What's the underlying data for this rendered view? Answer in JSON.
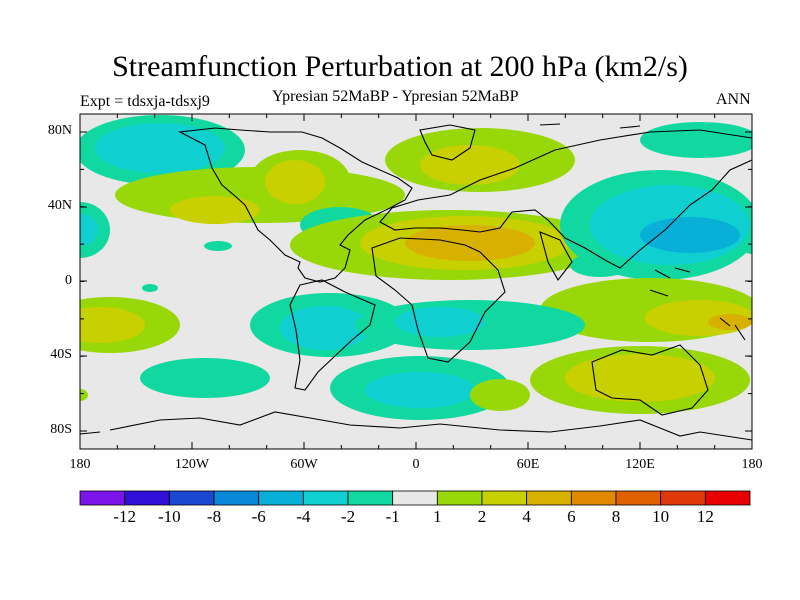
{
  "title": "Streamfunction Perturbation at 200 hPa (km2/s)",
  "subtitle_left": "Expt = tdsxja-tdsxj9",
  "subtitle_center": "Ypresian  52MaBP - Ypresian  52MaBP",
  "subtitle_right": "ANN",
  "lat_labels": [
    "80N",
    "40N",
    "0",
    "40S",
    "80S"
  ],
  "lon_labels": [
    "180",
    "120W",
    "60W",
    "0",
    "60E",
    "120E",
    "180"
  ],
  "colorbar": {
    "labels": [
      "-12",
      "-10",
      "-8",
      "-6",
      "-4",
      "-2",
      "-1",
      "1",
      "2",
      "4",
      "6",
      "8",
      "10",
      "12"
    ],
    "colors": [
      "#7b14e8",
      "#3010d8",
      "#1a48d0",
      "#0a88d8",
      "#08b0d8",
      "#10cfd0",
      "#10d8a0",
      "#e8e8e8",
      "#98d808",
      "#c8d000",
      "#d8b000",
      "#e08800",
      "#e06000",
      "#e03808",
      "#e80000"
    ]
  },
  "colors": {
    "missing": "#e8e8e8",
    "cyan": "#10cfd0",
    "blue": "#08b0d8",
    "teal": "#10d8a0",
    "green": "#98d808",
    "yellow": "#c8d000",
    "orange": "#d8b000",
    "coast": "#000000"
  }
}
